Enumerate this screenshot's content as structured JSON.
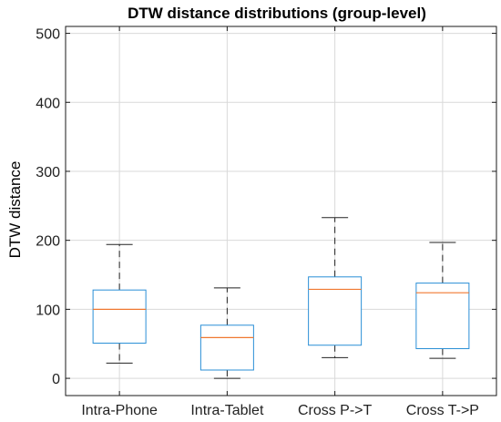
{
  "chart_data": {
    "type": "box",
    "title": "DTW distance distributions (group-level)",
    "xlabel": "",
    "ylabel": "DTW distance",
    "ylim": [
      -25,
      510
    ],
    "yticks": [
      0,
      100,
      200,
      300,
      400,
      500
    ],
    "grid": true,
    "categories": [
      "Intra-Phone",
      "Intra-Tablet",
      "Cross P->T",
      "Cross T->P"
    ],
    "boxes": [
      {
        "whisker_low": 22,
        "q1": 51,
        "median": 100,
        "q3": 128,
        "whisker_high": 194
      },
      {
        "whisker_low": 0,
        "q1": 12,
        "median": 59,
        "q3": 77,
        "whisker_high": 131
      },
      {
        "whisker_low": 30,
        "q1": 48,
        "median": 129,
        "q3": 147,
        "whisker_high": 233
      },
      {
        "whisker_low": 29,
        "q1": 43,
        "median": 124,
        "q3": 138,
        "whisker_high": 197
      }
    ],
    "colors": {
      "box": "#2a8fd6",
      "median": "#f07830",
      "whisker": "#222222",
      "grid": "#d9d9d9",
      "axis": "#1a1a1a"
    }
  }
}
